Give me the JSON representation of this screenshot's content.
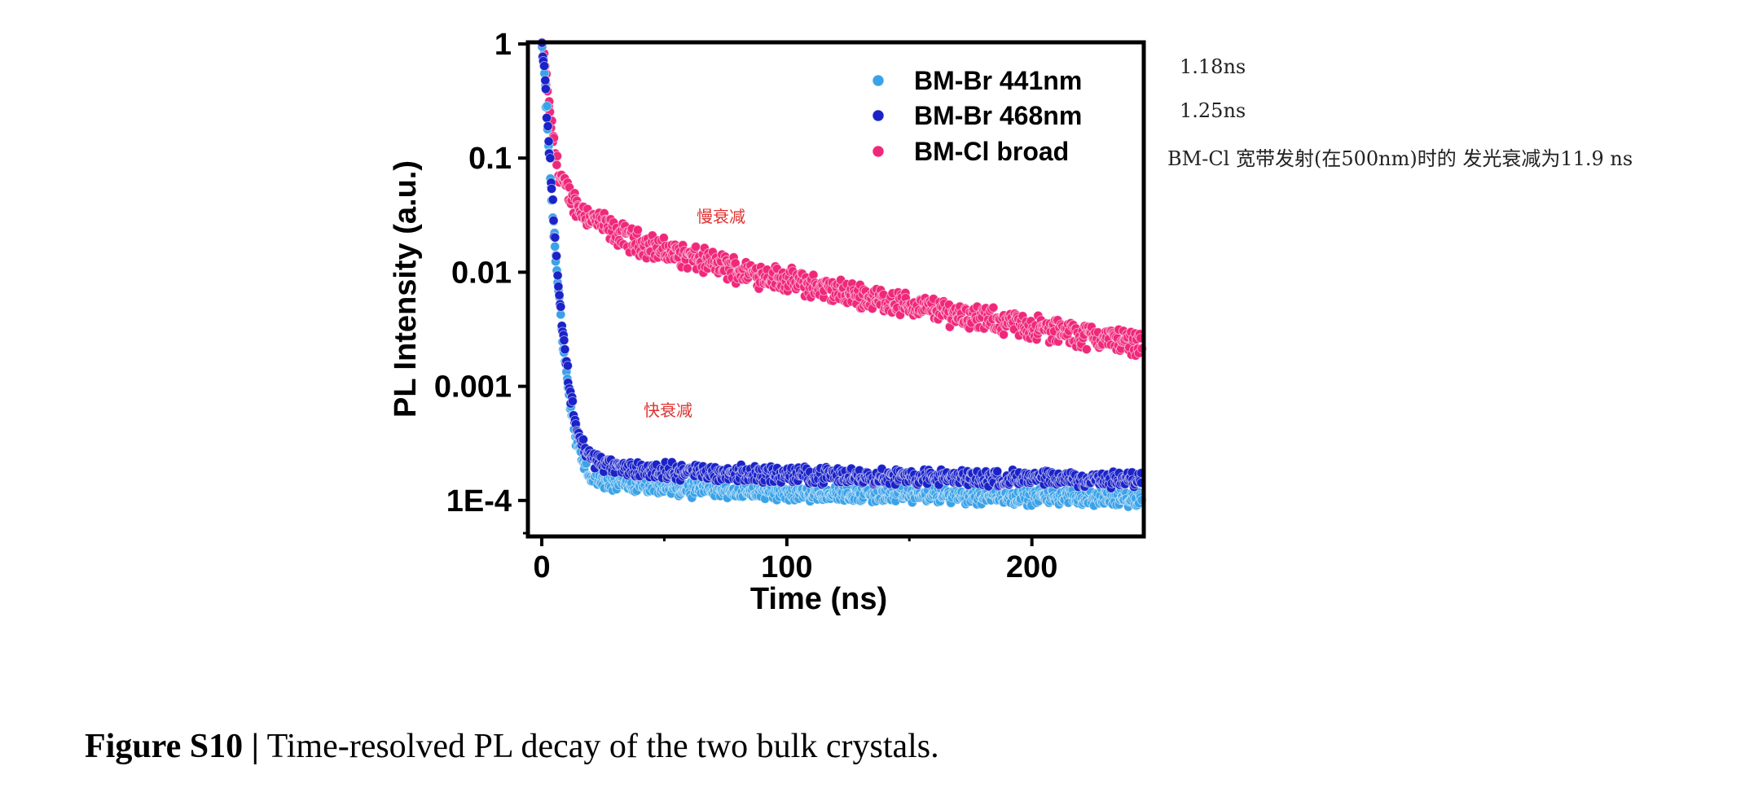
{
  "chart_data": {
    "type": "scatter",
    "title": "",
    "xlabel": "Time (ns)",
    "ylabel": "PL Intensity (a.u.)",
    "xlim": [
      -5,
      245
    ],
    "ylim": [
      5e-05,
      1.0
    ],
    "yscale": "log",
    "x_ticks": [
      0,
      100,
      200
    ],
    "x_tick_labels": [
      "0",
      "100",
      "200"
    ],
    "y_ticks": [
      1,
      0.1,
      0.01,
      0.001,
      0.0001
    ],
    "y_tick_labels": [
      "1",
      "0.1",
      "0.01",
      "0.001",
      "1E-4"
    ],
    "legend_position": "top-right",
    "series": [
      {
        "name": "BM-Br 441nm",
        "color": "#3aa2e8",
        "points": [
          [
            0,
            1.0
          ],
          [
            1,
            0.6
          ],
          [
            2,
            0.25
          ],
          [
            3,
            0.1
          ],
          [
            4,
            0.045
          ],
          [
            5,
            0.022
          ],
          [
            6,
            0.011
          ],
          [
            7,
            0.0062
          ],
          [
            8,
            0.0035
          ],
          [
            9,
            0.0021
          ],
          [
            10,
            0.0013
          ],
          [
            12,
            0.00062
          ],
          [
            14,
            0.00035
          ],
          [
            16,
            0.00024
          ],
          [
            18,
            0.00019
          ],
          [
            20,
            0.000165
          ],
          [
            25,
            0.000145
          ],
          [
            30,
            0.000138
          ],
          [
            40,
            0.000132
          ],
          [
            60,
            0.000125
          ],
          [
            80,
            0.00012
          ],
          [
            100,
            0.000117
          ],
          [
            150,
            0.000112
          ],
          [
            200,
            0.000108
          ],
          [
            245,
            0.000105
          ]
        ]
      },
      {
        "name": "BM-Br 468nm",
        "color": "#1a22c8",
        "points": [
          [
            0,
            1.0
          ],
          [
            1,
            0.6
          ],
          [
            2,
            0.28
          ],
          [
            3,
            0.12
          ],
          [
            4,
            0.055
          ],
          [
            5,
            0.026
          ],
          [
            6,
            0.013
          ],
          [
            7,
            0.0072
          ],
          [
            8,
            0.0041
          ],
          [
            9,
            0.0025
          ],
          [
            10,
            0.0016
          ],
          [
            12,
            0.00078
          ],
          [
            14,
            0.00046
          ],
          [
            16,
            0.00033
          ],
          [
            18,
            0.00027
          ],
          [
            20,
            0.00024
          ],
          [
            25,
            0.00021
          ],
          [
            30,
            0.000195
          ],
          [
            40,
            0.000185
          ],
          [
            60,
            0.000178
          ],
          [
            80,
            0.000172
          ],
          [
            100,
            0.000168
          ],
          [
            150,
            0.00016
          ],
          [
            200,
            0.000155
          ],
          [
            245,
            0.00015
          ]
        ]
      },
      {
        "name": "BM-Cl broad",
        "color": "#f0287a",
        "points": [
          [
            0,
            1.0
          ],
          [
            1,
            0.7
          ],
          [
            2,
            0.45
          ],
          [
            3,
            0.28
          ],
          [
            4,
            0.18
          ],
          [
            5,
            0.13
          ],
          [
            6,
            0.095
          ],
          [
            8,
            0.067
          ],
          [
            10,
            0.052
          ],
          [
            12,
            0.044
          ],
          [
            15,
            0.037
          ],
          [
            20,
            0.03
          ],
          [
            25,
            0.026
          ],
          [
            30,
            0.022
          ],
          [
            40,
            0.018
          ],
          [
            50,
            0.0155
          ],
          [
            60,
            0.0135
          ],
          [
            80,
            0.0105
          ],
          [
            100,
            0.0085
          ],
          [
            120,
            0.0068
          ],
          [
            140,
            0.0056
          ],
          [
            160,
            0.0047
          ],
          [
            180,
            0.0039
          ],
          [
            200,
            0.0033
          ],
          [
            220,
            0.0028
          ],
          [
            245,
            0.0024
          ]
        ]
      }
    ]
  },
  "notes": {
    "br441": "1.18ns",
    "br468": "1.25ns",
    "cl": "BM-Cl 宽带发射(在500nm)时的 发光衰减为11.9 ns"
  },
  "annotations": {
    "slow": "慢衰减",
    "fast": "快衰减"
  },
  "caption": {
    "label": "Figure S10 |",
    "text": " Time-resolved PL decay of the two bulk crystals."
  }
}
